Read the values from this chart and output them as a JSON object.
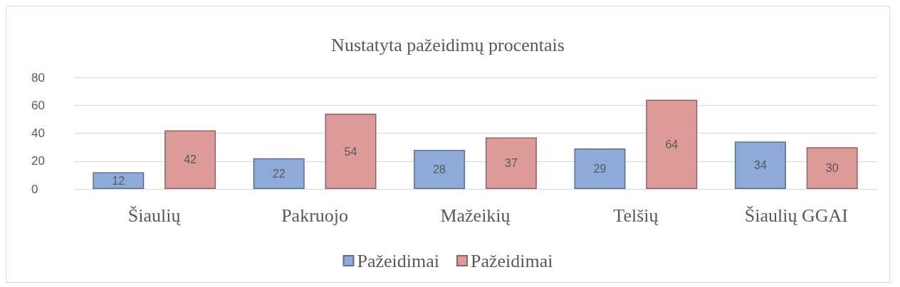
{
  "chart_data": {
    "type": "bar",
    "title": "Nustatyta pažeidimų procentais",
    "categories": [
      "Šiaulių",
      "Pakruojo",
      "Mažeikių",
      "Telšių",
      "Šiaulių GGAI"
    ],
    "series": [
      {
        "name": "Pažeidimai",
        "color": "#8eaad8",
        "values": [
          12,
          22,
          28,
          29,
          34
        ]
      },
      {
        "name": "Pažeidimai",
        "color": "#dc9a98",
        "values": [
          42,
          54,
          37,
          64,
          30
        ]
      }
    ],
    "ylim": [
      0,
      80
    ],
    "yticks": [
      0,
      20,
      40,
      60,
      80
    ],
    "grid": "y",
    "legend": "bottom",
    "data_labels": true
  }
}
